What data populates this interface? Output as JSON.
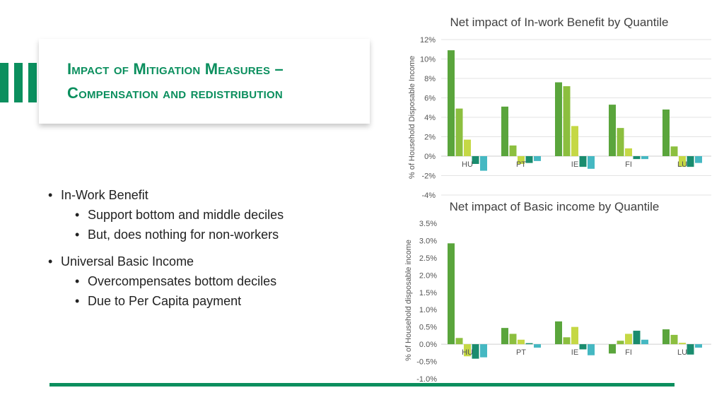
{
  "slide": {
    "title_line1": "Impact of Mitigation Measures –",
    "title_line2": "Compensation and redistribution",
    "bullets": [
      {
        "text": "In-Work Benefit",
        "sub": [
          "Support bottom and middle deciles",
          "But, does nothing for non-workers"
        ]
      },
      {
        "text": "Universal Basic Income",
        "sub": [
          "Overcompensates bottom deciles",
          "Due to Per Capita payment"
        ]
      }
    ]
  },
  "colors": {
    "accent": "#0b8f5e",
    "series": [
      "#5aa53c",
      "#8cbf3f",
      "#c5d845",
      "#1a8c6e",
      "#45b8c2"
    ]
  },
  "chart_data": [
    {
      "type": "bar",
      "title": "Net impact of In-work Benefit by Quantile",
      "ylabel": "% of Household Disposable Income",
      "categories": [
        "HU",
        "PT",
        "IE",
        "FI",
        "LU"
      ],
      "ylim": [
        -4,
        12
      ],
      "yticks": [
        -4,
        -2,
        0,
        2,
        4,
        6,
        8,
        10,
        12
      ],
      "ytick_labels": [
        "-4%",
        "-2%",
        "0%",
        "2%",
        "4%",
        "6%",
        "8%",
        "10%",
        "12%"
      ],
      "grid": true,
      "series": [
        {
          "values": [
            10.9,
            5.1,
            7.6,
            5.3,
            4.8
          ]
        },
        {
          "values": [
            4.9,
            1.1,
            7.2,
            2.9,
            1.0
          ]
        },
        {
          "values": [
            1.7,
            -0.8,
            3.1,
            0.8,
            -1.1
          ]
        },
        {
          "values": [
            -0.8,
            -0.7,
            -1.1,
            -0.3,
            -1.1
          ]
        },
        {
          "values": [
            -1.5,
            -0.5,
            -1.3,
            -0.3,
            -0.7
          ]
        }
      ]
    },
    {
      "type": "bar",
      "title": "Net impact of Basic income by Quantile",
      "ylabel": "% of Household  disposable income",
      "categories": [
        "HU",
        "PT",
        "IE",
        "FI",
        "LU"
      ],
      "ylim": [
        -1.0,
        3.5
      ],
      "yticks": [
        -1.0,
        -0.5,
        0.0,
        0.5,
        1.0,
        1.5,
        2.0,
        2.5,
        3.0,
        3.5
      ],
      "ytick_labels": [
        "-1.0%",
        "-0.5%",
        "0.0%",
        "0.5%",
        "1.0%",
        "1.5%",
        "2.0%",
        "2.5%",
        "3.0%",
        "3.5%"
      ],
      "grid": false,
      "series": [
        {
          "values": [
            2.92,
            0.47,
            0.66,
            -0.27,
            0.43
          ]
        },
        {
          "values": [
            0.18,
            0.3,
            0.2,
            0.1,
            0.27
          ]
        },
        {
          "values": [
            -0.35,
            0.13,
            0.5,
            0.3,
            0.04
          ]
        },
        {
          "values": [
            -0.42,
            0.03,
            -0.15,
            0.39,
            -0.3
          ]
        },
        {
          "values": [
            -0.38,
            -0.1,
            -0.32,
            0.13,
            -0.1
          ]
        }
      ]
    }
  ]
}
